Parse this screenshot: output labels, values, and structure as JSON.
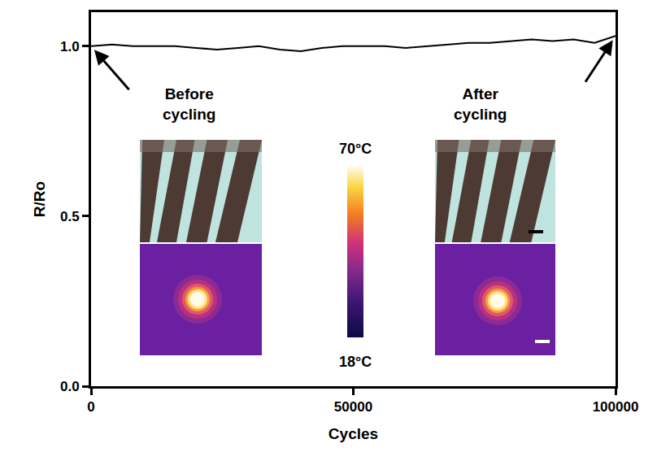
{
  "chart_data": {
    "type": "line",
    "x_label": "Cycles",
    "y_label": "R/Ro",
    "x": [
      0,
      4000,
      8000,
      12000,
      16000,
      20000,
      24000,
      28000,
      32000,
      36000,
      40000,
      44000,
      48000,
      52000,
      56000,
      60000,
      64000,
      68000,
      72000,
      76000,
      80000,
      84000,
      88000,
      92000,
      96000,
      100000
    ],
    "values": [
      1.0,
      1.005,
      1.0,
      1.0,
      1.0,
      0.995,
      0.99,
      0.995,
      1.0,
      0.99,
      0.985,
      0.995,
      1.0,
      1.0,
      1.0,
      0.995,
      1.0,
      1.005,
      1.01,
      1.01,
      1.015,
      1.02,
      1.015,
      1.02,
      1.01,
      1.03
    ],
    "color": "#000000",
    "xlim": [
      0,
      100000
    ],
    "ylim": [
      0,
      1.1
    ],
    "xticks": [
      0,
      50000,
      100000
    ],
    "yticks": [
      {
        "value": 0,
        "label": "0.0"
      },
      {
        "value": 0.5,
        "label": "0.5"
      },
      {
        "value": 1.0,
        "label": "1.0"
      }
    ],
    "grid": false,
    "annotations": [
      {
        "text": "Before cycling",
        "x": 0,
        "y": 1.0
      },
      {
        "text": "After cycling",
        "x": 100000,
        "y": 1.03
      }
    ],
    "colorbar": {
      "range": [
        18,
        70
      ],
      "top_label": "70°C",
      "bottom_label": "18°C"
    }
  }
}
